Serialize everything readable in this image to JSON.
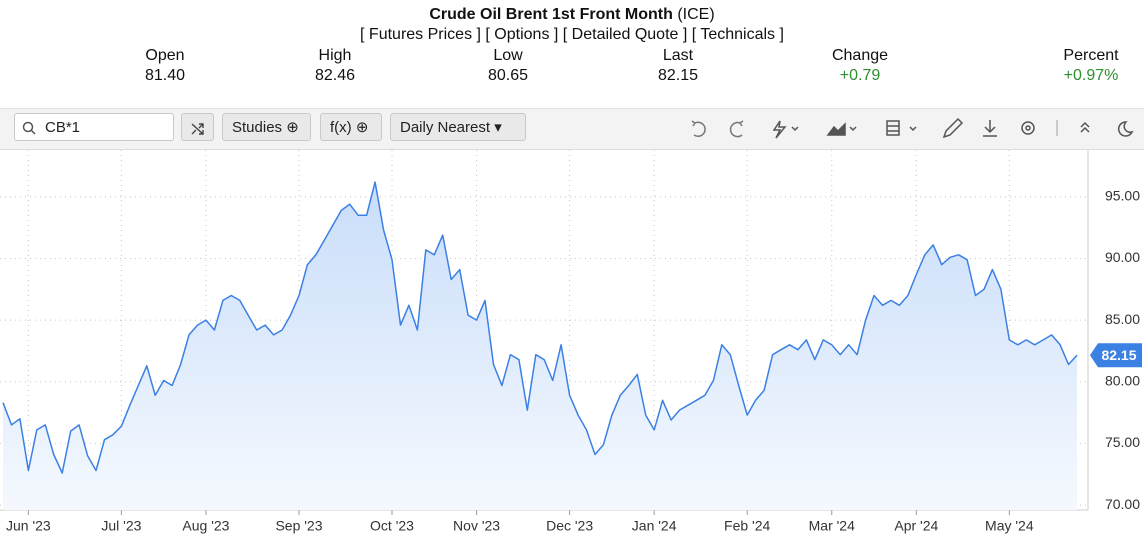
{
  "header": {
    "title": "Crude Oil Brent 1st Front Month",
    "exchange": "(ICE)",
    "links": [
      "[ Futures Prices ]",
      "[ Options ]",
      "[ Detailed Quote ]",
      "[ Technicals ]"
    ]
  },
  "stats": [
    {
      "label": "Open",
      "value": "81.40"
    },
    {
      "label": "High",
      "value": "82.46"
    },
    {
      "label": "Low",
      "value": "80.65"
    },
    {
      "label": "Last",
      "value": "82.15"
    },
    {
      "label": "Change",
      "value": "+0.79"
    },
    {
      "label": "Percent",
      "value": "+0.97%"
    }
  ],
  "toolbar": {
    "symbol": "CB*1",
    "studies": "Studies",
    "fx": "f(x)",
    "period": "Daily Nearest"
  },
  "chart_data": {
    "type": "line",
    "color": "#3b80e3",
    "grid": true,
    "categories": [
      null,
      null,
      null,
      "Jun '23",
      null,
      null,
      null,
      null,
      null,
      null,
      null,
      null,
      null,
      null,
      "Jul '23",
      null,
      null,
      null,
      null,
      null,
      null,
      null,
      null,
      null,
      "Aug '23",
      null,
      null,
      null,
      null,
      null,
      null,
      null,
      null,
      null,
      null,
      "Sep '23",
      null,
      null,
      null,
      null,
      null,
      null,
      null,
      null,
      null,
      null,
      "Oct '23",
      null,
      null,
      null,
      null,
      null,
      null,
      null,
      null,
      null,
      "Nov '23",
      null,
      null,
      null,
      null,
      null,
      null,
      null,
      null,
      null,
      null,
      "Dec '23",
      null,
      null,
      null,
      null,
      null,
      null,
      null,
      null,
      null,
      "Jan '24",
      null,
      null,
      null,
      null,
      null,
      null,
      null,
      null,
      null,
      null,
      "Feb '24",
      null,
      null,
      null,
      null,
      null,
      null,
      null,
      null,
      null,
      "Mar '24",
      null,
      null,
      null,
      null,
      null,
      null,
      null,
      null,
      null,
      "Apr '24",
      null,
      null,
      null,
      null,
      null,
      null,
      null,
      null,
      null,
      null,
      "May '24",
      null,
      null,
      null,
      null,
      null,
      null,
      null,
      null
    ],
    "values": [
      78.3,
      76.5,
      77.0,
      72.8,
      76.1,
      76.5,
      74.1,
      72.6,
      76.0,
      76.5,
      74.0,
      72.8,
      75.3,
      75.7,
      76.4,
      78.1,
      79.7,
      81.3,
      78.9,
      80.1,
      79.7,
      81.4,
      83.8,
      84.6,
      85.0,
      84.2,
      86.6,
      87.0,
      86.6,
      85.4,
      84.2,
      84.6,
      83.8,
      84.2,
      85.4,
      87.0,
      89.5,
      90.3,
      91.5,
      92.7,
      93.9,
      94.4,
      93.5,
      93.5,
      96.2,
      92.3,
      89.9,
      84.6,
      86.2,
      84.2,
      90.7,
      90.3,
      91.9,
      88.3,
      89.1,
      85.4,
      85.0,
      86.6,
      81.4,
      79.7,
      82.2,
      81.8,
      77.7,
      82.2,
      81.8,
      80.1,
      83.0,
      78.9,
      77.3,
      76.1,
      74.1,
      74.9,
      77.3,
      78.9,
      79.7,
      80.6,
      77.3,
      76.1,
      78.5,
      76.9,
      77.7,
      78.1,
      78.5,
      78.9,
      80.1,
      83.0,
      82.2,
      79.7,
      77.3,
      78.5,
      79.3,
      82.2,
      82.6,
      83.0,
      82.6,
      83.4,
      81.8,
      83.4,
      83.0,
      82.2,
      83.0,
      82.2,
      85.0,
      87.0,
      86.2,
      86.6,
      86.2,
      87.0,
      88.7,
      90.3,
      91.1,
      89.5,
      90.1,
      90.3,
      89.9,
      87.0,
      87.5,
      89.1,
      87.5,
      83.4,
      83.0,
      83.4,
      83.0,
      83.4,
      83.8,
      83.0,
      81.4,
      82.15
    ],
    "ylim": [
      69.6,
      98.8
    ],
    "yticks": [
      {
        "value": 70,
        "label": "70.00"
      },
      {
        "value": 75,
        "label": "75.00"
      },
      {
        "value": 80,
        "label": "80.00"
      },
      {
        "value": 85,
        "label": "85.00"
      },
      {
        "value": 90,
        "label": "90.00"
      },
      {
        "value": 95,
        "label": "95.00"
      }
    ]
  }
}
